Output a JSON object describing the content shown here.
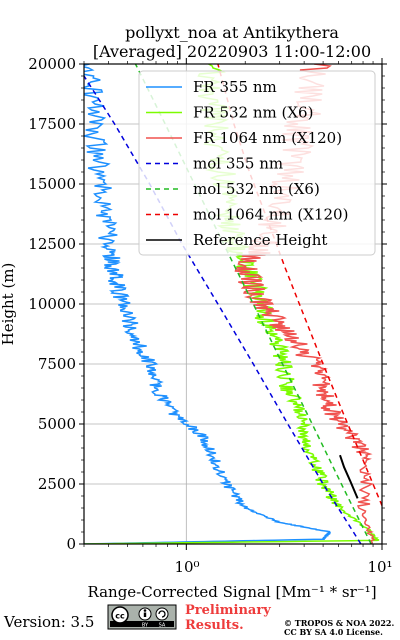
{
  "figure": {
    "title_line1": "pollyxt_noa at Antikythera",
    "title_line2": "[Averaged] 20220903 11:00-12:00",
    "version": "Version: 3.5",
    "preliminary_line1": "Preliminary",
    "preliminary_line2": "Results.",
    "copyright_line1": "© TROPOS & NOA 2022.",
    "copyright_line2": "CC BY SA 4.0 License.",
    "license_badge_icon": "cc-by-sa-badge"
  },
  "chart_data": {
    "type": "line",
    "xlabel": "Range-Corrected Signal [Mm⁻¹ * sr⁻¹]",
    "ylabel": "Height (m)",
    "xscale": "log",
    "xlim": [
      0.3,
      10
    ],
    "ylim": [
      0,
      20000
    ],
    "x_tick_labels": [
      {
        "value": 1,
        "label": "10⁰"
      },
      {
        "value": 10,
        "label": "10¹"
      }
    ],
    "y_ticks": [
      0,
      2500,
      5000,
      7500,
      10000,
      12500,
      15000,
      17500,
      20000
    ],
    "grid": true,
    "legend_position": "upper right",
    "series": [
      {
        "name": "FR 355 nm",
        "style": "solid",
        "color": "#1e90ff",
        "points": [
          [
            0.3,
            0
          ],
          [
            5.0,
            200
          ],
          [
            5.4,
            500
          ],
          [
            3.0,
            900
          ],
          [
            2.0,
            1500
          ],
          [
            1.6,
            2500
          ],
          [
            1.4,
            3500
          ],
          [
            1.2,
            4500
          ],
          [
            0.85,
            5500
          ],
          [
            0.7,
            6500
          ],
          [
            0.65,
            7500
          ],
          [
            0.55,
            8500
          ],
          [
            0.5,
            9500
          ],
          [
            0.45,
            10500
          ],
          [
            0.42,
            11500
          ],
          [
            0.4,
            12500
          ],
          [
            0.38,
            14000
          ],
          [
            0.35,
            16000
          ],
          [
            0.33,
            18000
          ],
          [
            0.32,
            20000
          ]
        ]
      },
      {
        "name": "FR 532 nm (X6)",
        "style": "solid",
        "color": "#7cfc00",
        "points": [
          [
            0.3,
            0
          ],
          [
            9.5,
            150
          ],
          [
            8.5,
            600
          ],
          [
            6.0,
            1500
          ],
          [
            5.0,
            2500
          ],
          [
            4.5,
            3500
          ],
          [
            4.0,
            4500
          ],
          [
            3.8,
            5500
          ],
          [
            3.3,
            6500
          ],
          [
            3.1,
            7500
          ],
          [
            2.9,
            8500
          ],
          [
            2.5,
            9500
          ],
          [
            2.3,
            10500
          ],
          [
            2.0,
            11500
          ],
          [
            1.8,
            12500
          ],
          [
            1.6,
            14000
          ],
          [
            1.5,
            16000
          ],
          [
            1.4,
            18000
          ],
          [
            1.3,
            20000
          ]
        ]
      },
      {
        "name": "FR 1064 nm (X120)",
        "style": "solid",
        "color": "#f0524f",
        "points": [
          [
            9.0,
            0
          ],
          [
            8.0,
            1500
          ],
          [
            8.5,
            3500
          ],
          [
            7.0,
            4500
          ],
          [
            5.5,
            5500
          ],
          [
            5.0,
            6500
          ],
          [
            4.5,
            7500
          ],
          [
            3.5,
            8500
          ],
          [
            2.8,
            9500
          ],
          [
            2.2,
            10500
          ],
          [
            2.0,
            11500
          ],
          [
            2.5,
            12500
          ],
          [
            3.0,
            14000
          ],
          [
            3.5,
            16000
          ],
          [
            4.0,
            18000
          ],
          [
            4.5,
            20000
          ]
        ]
      },
      {
        "name": "mol 355 nm",
        "style": "dashed",
        "color": "#0000dd",
        "points": [
          [
            7.8,
            0
          ],
          [
            5.0,
            2500
          ],
          [
            3.3,
            5000
          ],
          [
            2.2,
            7500
          ],
          [
            1.45,
            10000
          ],
          [
            0.95,
            12500
          ],
          [
            0.65,
            15000
          ],
          [
            0.43,
            17500
          ],
          [
            0.3,
            19500
          ]
        ]
      },
      {
        "name": "mol 532 nm (X6)",
        "style": "dashed",
        "color": "#22bb22",
        "points": [
          [
            8.8,
            0
          ],
          [
            6.2,
            2500
          ],
          [
            4.4,
            5000
          ],
          [
            3.1,
            7500
          ],
          [
            2.2,
            10000
          ],
          [
            1.55,
            12500
          ],
          [
            1.1,
            15000
          ],
          [
            0.78,
            17500
          ],
          [
            0.55,
            20000
          ]
        ]
      },
      {
        "name": "mol 1064 nm (X120)",
        "style": "dashed",
        "color": "#ee0000",
        "points": [
          [
            10.0,
            1600
          ],
          [
            8.0,
            3500
          ],
          [
            6.3,
            5500
          ],
          [
            5.0,
            7500
          ],
          [
            4.0,
            9500
          ],
          [
            3.2,
            11500
          ],
          [
            2.6,
            13500
          ],
          [
            2.1,
            15500
          ],
          [
            1.75,
            17500
          ],
          [
            1.45,
            20000
          ]
        ]
      },
      {
        "name": "Reference Height",
        "style": "solid",
        "color": "#000000",
        "points": [
          [
            6.1,
            3700
          ],
          [
            6.4,
            3200
          ],
          [
            6.9,
            2600
          ],
          [
            7.5,
            1900
          ]
        ]
      }
    ]
  }
}
